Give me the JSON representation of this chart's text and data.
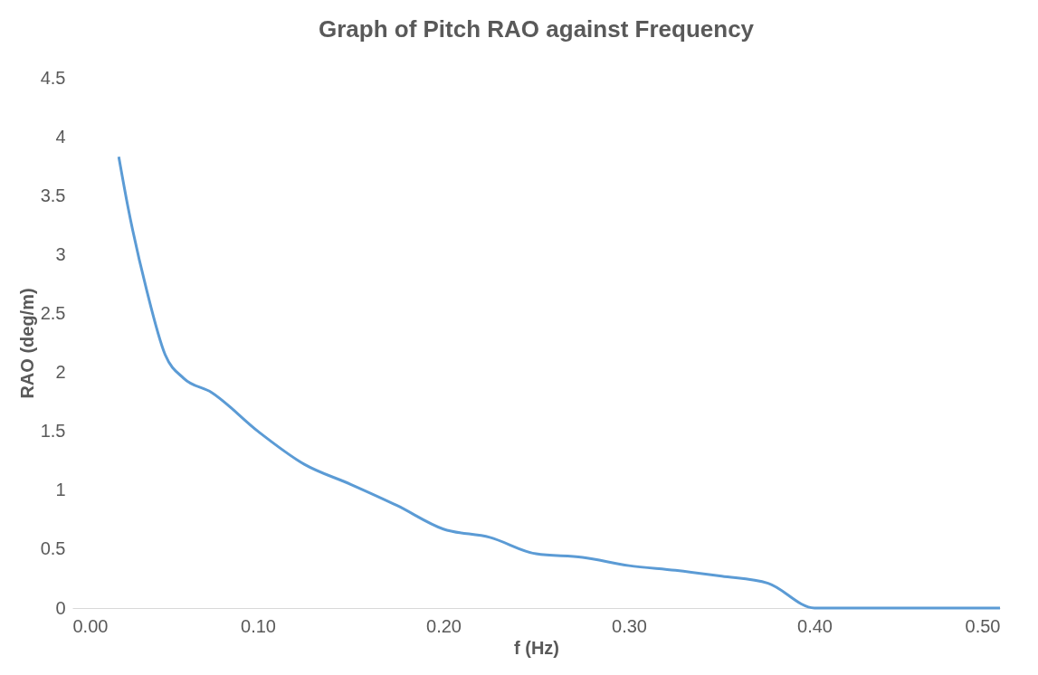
{
  "chart_data": {
    "type": "line",
    "title": "Graph of Pitch RAO against Frequency",
    "xlabel": "f (Hz)",
    "ylabel": "RAO (deg/m)",
    "series": [
      {
        "color": "#5b9bd5",
        "x": [
          0.025,
          0.03,
          0.04,
          0.05,
          0.06,
          0.075,
          0.1,
          0.125,
          0.15,
          0.175,
          0.2,
          0.225,
          0.25,
          0.275,
          0.3,
          0.325,
          0.35,
          0.375,
          0.4,
          0.425,
          0.45,
          0.475,
          0.5
        ],
        "values": [
          3.83,
          3.4,
          2.7,
          2.15,
          1.95,
          1.83,
          1.5,
          1.22,
          1.05,
          0.87,
          0.67,
          0.6,
          0.46,
          0.43,
          0.36,
          0.32,
          0.27,
          0.21,
          0.0,
          0.0,
          0.0,
          0.0,
          0.0
        ]
      }
    ],
    "xlim": [
      0,
      0.5
    ],
    "xticks": [
      {
        "value": 0,
        "label": "0.00"
      },
      {
        "value": 0.1,
        "label": "0.10"
      },
      {
        "value": 0.2,
        "label": "0.20"
      },
      {
        "value": 0.3,
        "label": "0.30"
      },
      {
        "value": 0.4,
        "label": "0.40"
      },
      {
        "value": 0.5,
        "label": "0.50"
      }
    ],
    "ylim": [
      0,
      4.5
    ],
    "yticks": [
      0,
      0.5,
      1,
      1.5,
      2,
      2.5,
      3,
      3.5,
      4,
      4.5
    ],
    "grid": false,
    "marker": "none",
    "line_style": "solid"
  }
}
